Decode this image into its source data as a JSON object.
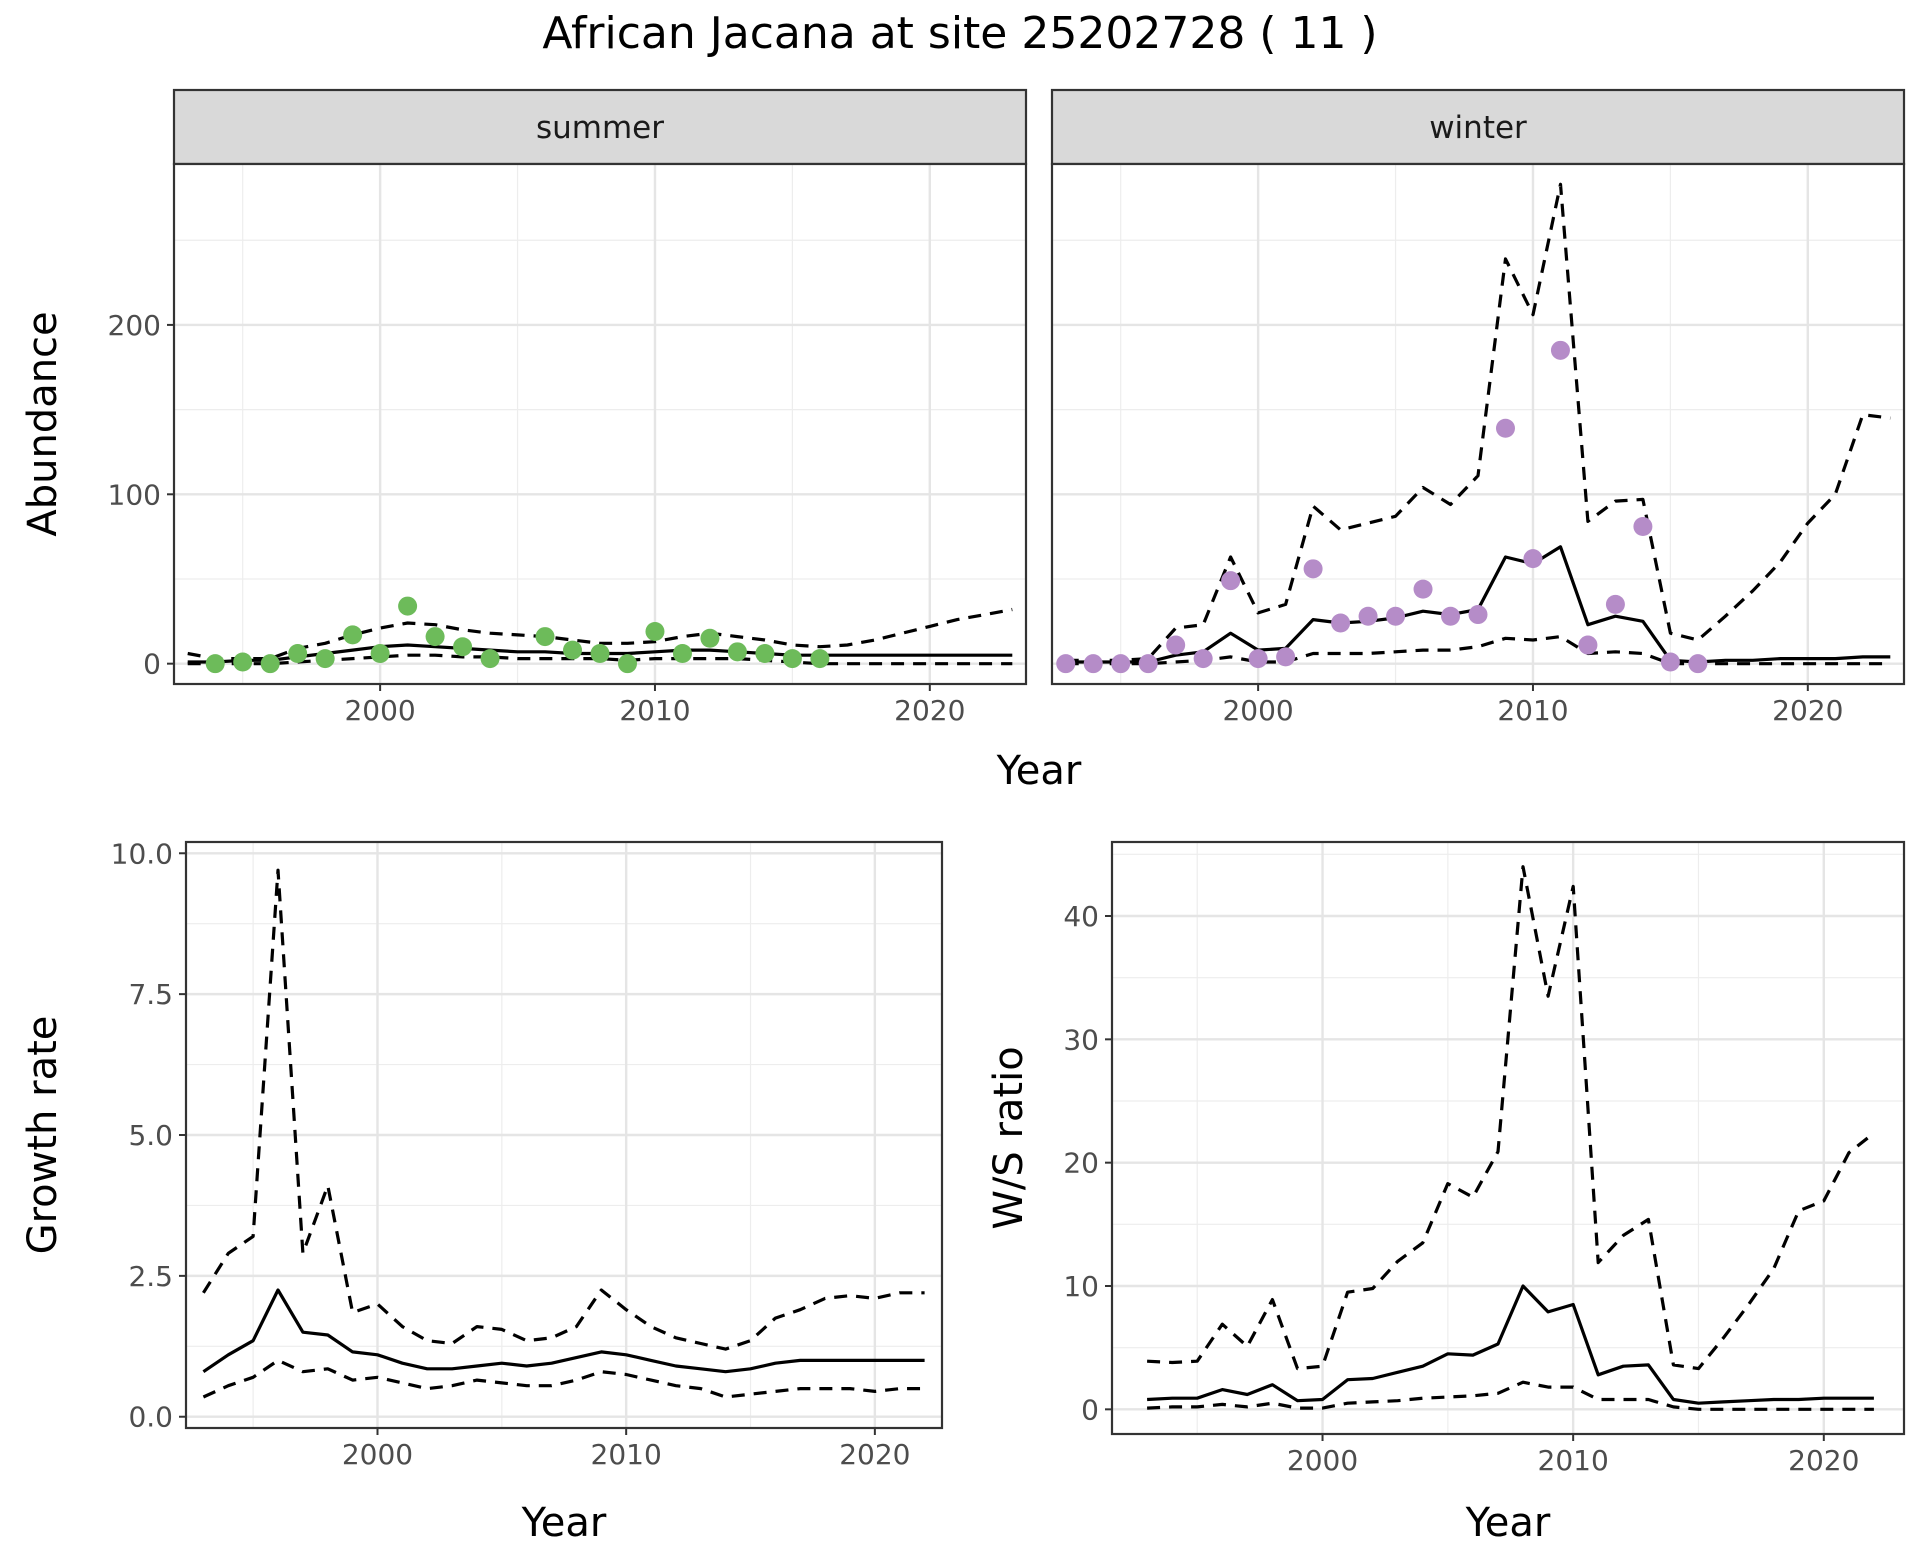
{
  "page_title": "African Jacana at site 25202728 ( 11 )",
  "colors": {
    "summer_points": "#6dbb5a",
    "winter_points": "#b58cc8",
    "strip_fill": "#d9d9d9",
    "lines": "#000000"
  },
  "chart_data": [
    {
      "id": "abundance",
      "type": "scatter",
      "xlabel": "Year",
      "ylabel": "Abundance",
      "xlim": [
        1992.5,
        2023.5
      ],
      "ylim": [
        -12,
        295
      ],
      "x_ticks": [
        2000,
        2010,
        2020
      ],
      "y_ticks": [
        0,
        100,
        200
      ],
      "grid": true,
      "facets": [
        {
          "strip_label": "summer",
          "point_color": "#6dbb5a",
          "points": {
            "x": [
              1994,
              1995,
              1996,
              1997,
              1998,
              1999,
              2000,
              2001,
              2002,
              2003,
              2004,
              2006,
              2007,
              2008,
              2009,
              2010,
              2011,
              2012,
              2013,
              2014,
              2015,
              2016
            ],
            "y": [
              0,
              1,
              0,
              6,
              3,
              17,
              6,
              34,
              16,
              10,
              3,
              16,
              8,
              6,
              0,
              19,
              6,
              15,
              7,
              6,
              3,
              3
            ]
          },
          "fit": {
            "x": [
              1993,
              1994,
              1995,
              1996,
              1997,
              1998,
              1999,
              2000,
              2001,
              2002,
              2003,
              2004,
              2005,
              2006,
              2007,
              2008,
              2009,
              2010,
              2011,
              2012,
              2013,
              2014,
              2015,
              2016,
              2017,
              2018,
              2019,
              2020,
              2021,
              2022,
              2023
            ],
            "y": [
              1,
              1,
              2,
              2,
              4,
              6,
              8,
              10,
              11,
              10,
              9,
              8,
              7,
              7,
              6,
              6,
              6,
              7,
              8,
              8,
              7,
              6,
              5,
              5,
              5,
              5,
              5,
              5,
              5,
              5,
              5
            ]
          },
          "upper": {
            "x": [
              1993,
              1994,
              1995,
              1996,
              1997,
              1998,
              1999,
              2000,
              2001,
              2002,
              2003,
              2004,
              2005,
              2006,
              2007,
              2008,
              2009,
              2010,
              2011,
              2012,
              2013,
              2014,
              2015,
              2016,
              2017,
              2018,
              2019,
              2020,
              2021,
              2022,
              2023
            ],
            "y": [
              6,
              3,
              3,
              3,
              9,
              12,
              17,
              21,
              24,
              23,
              20,
              18,
              17,
              16,
              14,
              12,
              12,
              13,
              16,
              18,
              16,
              14,
              11,
              10,
              11,
              14,
              18,
              22,
              26,
              29,
              32
            ]
          },
          "lower": {
            "x": [
              1993,
              1994,
              1995,
              1996,
              1997,
              1998,
              1999,
              2000,
              2001,
              2002,
              2003,
              2004,
              2005,
              2006,
              2007,
              2008,
              2009,
              2010,
              2011,
              2012,
              2013,
              2014,
              2015,
              2016,
              2017,
              2018,
              2019,
              2020,
              2021,
              2022,
              2023
            ],
            "y": [
              0,
              0,
              0,
              0,
              1,
              2,
              3,
              4,
              5,
              5,
              4,
              4,
              3,
              3,
              3,
              3,
              2,
              3,
              3,
              3,
              3,
              2,
              1,
              0,
              0,
              0,
              0,
              0,
              0,
              0,
              0
            ]
          }
        },
        {
          "strip_label": "winter",
          "point_color": "#b58cc8",
          "points": {
            "x": [
              1993,
              1994,
              1995,
              1996,
              1997,
              1998,
              1999,
              2000,
              2001,
              2002,
              2003,
              2004,
              2005,
              2006,
              2007,
              2008,
              2009,
              2010,
              2011,
              2012,
              2013,
              2014,
              2015,
              2016
            ],
            "y": [
              0,
              0,
              0,
              0,
              11,
              3,
              49,
              3,
              4,
              56,
              24,
              28,
              28,
              44,
              28,
              29,
              139,
              62,
              185,
              11,
              35,
              81,
              1,
              0
            ]
          },
          "fit": {
            "x": [
              1993,
              1994,
              1995,
              1996,
              1997,
              1998,
              1999,
              2000,
              2001,
              2002,
              2003,
              2004,
              2005,
              2006,
              2007,
              2008,
              2009,
              2010,
              2011,
              2012,
              2013,
              2014,
              2015,
              2016,
              2017,
              2018,
              2019,
              2020,
              2021,
              2022,
              2023
            ],
            "y": [
              1,
              1,
              1,
              1,
              5,
              7,
              18,
              8,
              9,
              26,
              24,
              25,
              27,
              31,
              29,
              32,
              63,
              59,
              69,
              23,
              28,
              25,
              2,
              1,
              2,
              2,
              3,
              3,
              3,
              4,
              4
            ]
          },
          "upper": {
            "x": [
              1993,
              1994,
              1995,
              1996,
              1997,
              1998,
              1999,
              2000,
              2001,
              2002,
              2003,
              2004,
              2005,
              2006,
              2007,
              2008,
              2009,
              2010,
              2011,
              2012,
              2013,
              2014,
              2015,
              2016,
              2017,
              2018,
              2019,
              2020,
              2021,
              2022,
              2023
            ],
            "y": [
              2,
              2,
              2,
              3,
              21,
              23,
              63,
              30,
              35,
              93,
              79,
              83,
              87,
              104,
              94,
              111,
              239,
              206,
              283,
              84,
              96,
              97,
              18,
              14,
              28,
              43,
              60,
              83,
              100,
              147,
              145
            ]
          },
          "lower": {
            "x": [
              1993,
              1994,
              1995,
              1996,
              1997,
              1998,
              1999,
              2000,
              2001,
              2002,
              2003,
              2004,
              2005,
              2006,
              2007,
              2008,
              2009,
              2010,
              2011,
              2012,
              2013,
              2014,
              2015,
              2016,
              2017,
              2018,
              2019,
              2020,
              2021,
              2022,
              2023
            ],
            "y": [
              0,
              0,
              0,
              0,
              1,
              2,
              4,
              1,
              1,
              6,
              6,
              6,
              7,
              8,
              8,
              10,
              15,
              14,
              16,
              6,
              7,
              6,
              0,
              0,
              0,
              0,
              0,
              0,
              0,
              0,
              0
            ]
          }
        }
      ]
    },
    {
      "id": "growth",
      "type": "line",
      "xlabel": "Year",
      "ylabel": "Growth rate",
      "xlim": [
        1992.3,
        2022.7
      ],
      "ylim": [
        -0.2,
        10.2
      ],
      "x_ticks": [
        2000,
        2010,
        2020
      ],
      "y_ticks": [
        0,
        2.5,
        5,
        7.5,
        10
      ],
      "y_tick_labels": [
        "0.0",
        "2.5",
        "5.0",
        "7.5",
        "10.0"
      ],
      "grid": true,
      "fit": {
        "x": [
          1993,
          1994,
          1995,
          1996,
          1997,
          1998,
          1999,
          2000,
          2001,
          2002,
          2003,
          2004,
          2005,
          2006,
          2007,
          2008,
          2009,
          2010,
          2011,
          2012,
          2013,
          2014,
          2015,
          2016,
          2017,
          2018,
          2019,
          2020,
          2021,
          2022
        ],
        "y": [
          0.8,
          1.1,
          1.35,
          2.25,
          1.5,
          1.45,
          1.15,
          1.1,
          0.95,
          0.85,
          0.85,
          0.9,
          0.95,
          0.9,
          0.95,
          1.05,
          1.15,
          1.1,
          1.0,
          0.9,
          0.85,
          0.8,
          0.85,
          0.95,
          1.0,
          1.0,
          1.0,
          1.0,
          1.0,
          1.0
        ]
      },
      "upper": {
        "x": [
          1993,
          1994,
          1995,
          1996,
          1997,
          1998,
          1999,
          2000,
          2001,
          2002,
          2003,
          2004,
          2005,
          2006,
          2007,
          2008,
          2009,
          2010,
          2011,
          2012,
          2013,
          2014,
          2015,
          2016,
          2017,
          2018,
          2019,
          2020,
          2021,
          2022
        ],
        "y": [
          2.2,
          2.9,
          3.2,
          9.7,
          2.9,
          4.1,
          1.85,
          2.0,
          1.6,
          1.35,
          1.3,
          1.6,
          1.55,
          1.35,
          1.4,
          1.6,
          2.25,
          1.9,
          1.6,
          1.4,
          1.3,
          1.2,
          1.35,
          1.75,
          1.9,
          2.1,
          2.15,
          2.1,
          2.2,
          2.2
        ]
      },
      "lower": {
        "x": [
          1993,
          1994,
          1995,
          1996,
          1997,
          1998,
          1999,
          2000,
          2001,
          2002,
          2003,
          2004,
          2005,
          2006,
          2007,
          2008,
          2009,
          2010,
          2011,
          2012,
          2013,
          2014,
          2015,
          2016,
          2017,
          2018,
          2019,
          2020,
          2021,
          2022
        ],
        "y": [
          0.35,
          0.55,
          0.7,
          1.0,
          0.8,
          0.85,
          0.65,
          0.7,
          0.6,
          0.5,
          0.55,
          0.65,
          0.6,
          0.55,
          0.55,
          0.65,
          0.8,
          0.75,
          0.65,
          0.55,
          0.5,
          0.35,
          0.4,
          0.45,
          0.5,
          0.5,
          0.5,
          0.45,
          0.5,
          0.5
        ]
      }
    },
    {
      "id": "ws_ratio",
      "type": "line",
      "xlabel": "Year",
      "ylabel": "W/S ratio",
      "xlim": [
        1991.6,
        2023.2
      ],
      "ylim": [
        -2,
        46
      ],
      "x_ticks": [
        2000,
        2010,
        2020
      ],
      "y_ticks": [
        0,
        10,
        20,
        30,
        40
      ],
      "grid": true,
      "fit": {
        "x": [
          1993,
          1994,
          1995,
          1996,
          1997,
          1998,
          1999,
          2000,
          2001,
          2002,
          2003,
          2004,
          2005,
          2006,
          2007,
          2008,
          2009,
          2010,
          2011,
          2012,
          2013,
          2014,
          2015,
          2016,
          2017,
          2018,
          2019,
          2020,
          2021,
          2022
        ],
        "y": [
          0.8,
          0.9,
          0.9,
          1.6,
          1.2,
          2.0,
          0.7,
          0.8,
          2.4,
          2.5,
          3.0,
          3.5,
          4.5,
          4.4,
          5.3,
          10.0,
          7.9,
          8.5,
          2.8,
          3.5,
          3.6,
          0.8,
          0.5,
          0.6,
          0.7,
          0.8,
          0.8,
          0.9,
          0.9,
          0.9
        ]
      },
      "upper": {
        "x": [
          1993,
          1994,
          1995,
          1996,
          1997,
          1998,
          1999,
          2000,
          2001,
          2002,
          2003,
          2004,
          2005,
          2006,
          2007,
          2008,
          2009,
          2010,
          2011,
          2012,
          2013,
          2014,
          2015,
          2016,
          2017,
          2018,
          2019,
          2020,
          2021,
          2022
        ],
        "y": [
          3.9,
          3.8,
          3.9,
          6.9,
          5.1,
          8.9,
          3.3,
          3.5,
          9.5,
          9.8,
          12,
          13.5,
          18.3,
          17.2,
          20.9,
          44,
          33.5,
          42.4,
          11.9,
          14.1,
          15.4,
          3.6,
          3.3,
          5.8,
          8.5,
          11.4,
          16.1,
          16.9,
          20.8,
          22.4
        ]
      },
      "lower": {
        "x": [
          1993,
          1994,
          1995,
          1996,
          1997,
          1998,
          1999,
          2000,
          2001,
          2002,
          2003,
          2004,
          2005,
          2006,
          2007,
          2008,
          2009,
          2010,
          2011,
          2012,
          2013,
          2014,
          2015,
          2016,
          2017,
          2018,
          2019,
          2020,
          2021,
          2022
        ],
        "y": [
          0.1,
          0.2,
          0.2,
          0.4,
          0.2,
          0.5,
          0.1,
          0.1,
          0.5,
          0.6,
          0.7,
          0.9,
          1.0,
          1.1,
          1.3,
          2.2,
          1.8,
          1.8,
          0.8,
          0.8,
          0.8,
          0.2,
          0.0,
          0.0,
          0.0,
          0.0,
          0.0,
          0.0,
          0.0,
          0.0
        ]
      }
    }
  ]
}
